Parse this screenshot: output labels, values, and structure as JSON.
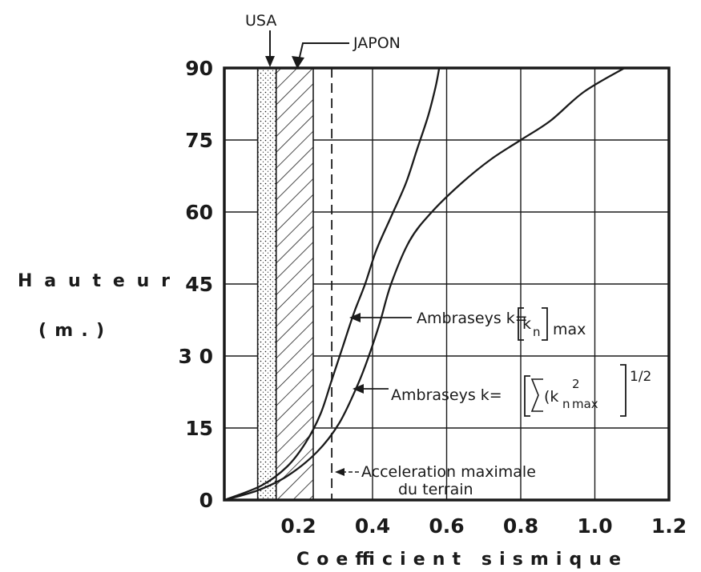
{
  "chart_data": {
    "type": "line",
    "xlabel": "Coefficient sismique",
    "ylabel_line1": "Hauteur",
    "ylabel_line2": "(m.)",
    "xlim": [
      0,
      1.2
    ],
    "ylim": [
      0,
      90
    ],
    "x_ticks": [
      "0.2",
      "0.4",
      "0.6",
      "0.8",
      "1.0",
      "1.2"
    ],
    "y_ticks": [
      "0",
      "15",
      "3 0",
      "45",
      "60",
      "75",
      "90"
    ],
    "grid": true,
    "bands": [
      {
        "label": "USA",
        "x_range": [
          0.09,
          0.14
        ],
        "pattern": "dots"
      },
      {
        "label": "JAPON",
        "x_range": [
          0.14,
          0.24
        ],
        "pattern": "hatch"
      }
    ],
    "reference_line": {
      "label_line1": "Acceleration maximale",
      "label_line2": "du terrain",
      "x": 0.29,
      "style": "dashed"
    },
    "series": [
      {
        "label_prefix": "Ambraseys k=",
        "label_inner": "k",
        "label_sub": "n",
        "label_suffix": "max",
        "points": [
          [
            0.0,
            0
          ],
          [
            0.1,
            3
          ],
          [
            0.17,
            7
          ],
          [
            0.22,
            12
          ],
          [
            0.26,
            18
          ],
          [
            0.29,
            25
          ],
          [
            0.32,
            32
          ],
          [
            0.35,
            39
          ],
          [
            0.38,
            45
          ],
          [
            0.41,
            52
          ],
          [
            0.45,
            59
          ],
          [
            0.49,
            66
          ],
          [
            0.52,
            73
          ],
          [
            0.55,
            80
          ],
          [
            0.57,
            86
          ],
          [
            0.58,
            90
          ]
        ]
      },
      {
        "label_prefix": "Ambraseys k=",
        "label_inner": "(k",
        "label_sub": "n",
        "label_sup": "2",
        "label_sub2": "max",
        "label_exp": "1/2",
        "points": [
          [
            0.0,
            0
          ],
          [
            0.09,
            2
          ],
          [
            0.17,
            5
          ],
          [
            0.25,
            10
          ],
          [
            0.31,
            16
          ],
          [
            0.36,
            24
          ],
          [
            0.39,
            30
          ],
          [
            0.42,
            37
          ],
          [
            0.45,
            45
          ],
          [
            0.5,
            54
          ],
          [
            0.56,
            60
          ],
          [
            0.64,
            66
          ],
          [
            0.72,
            71
          ],
          [
            0.8,
            75
          ],
          [
            0.88,
            79
          ],
          [
            0.97,
            85
          ],
          [
            1.08,
            90
          ]
        ]
      }
    ]
  }
}
